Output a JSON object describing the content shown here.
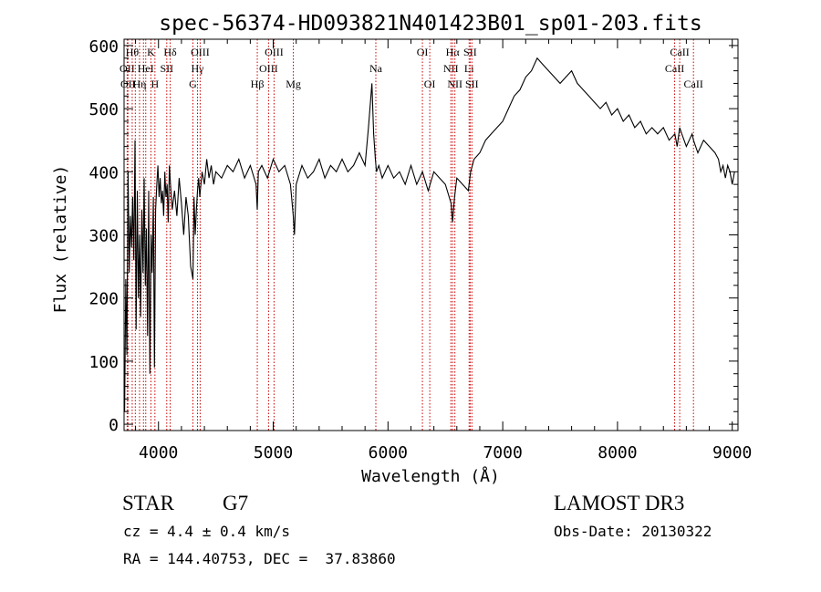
{
  "chart_data": {
    "type": "line",
    "title": "spec-56374-HD093821N401423B01_sp01-203.fits",
    "xlabel": "Wavelength (Å)",
    "ylabel": "Flux (relative)",
    "xlim": [
      3700,
      9050
    ],
    "ylim": [
      -10,
      610
    ],
    "xticks": [
      4000,
      5000,
      6000,
      7000,
      8000,
      9000
    ],
    "yticks": [
      0,
      100,
      200,
      300,
      400,
      500,
      600
    ],
    "grid": false,
    "line_color": "#000000",
    "marker_color": "#cc0000",
    "series": [
      {
        "x": [
          3705,
          3715,
          3725,
          3735,
          3745,
          3755,
          3765,
          3775,
          3785,
          3795,
          3805,
          3815,
          3825,
          3835,
          3845,
          3855,
          3865,
          3875,
          3885,
          3895,
          3905,
          3915,
          3925,
          3935,
          3945,
          3955,
          3965,
          3975,
          3985,
          3995,
          4005,
          4015,
          4025,
          4035,
          4045,
          4055,
          4065,
          4075,
          4085,
          4095,
          4105,
          4120,
          4140,
          4160,
          4180,
          4200,
          4220,
          4240,
          4260,
          4280,
          4300,
          4310,
          4320,
          4330,
          4340,
          4350,
          4360,
          4380,
          4400,
          4420,
          4440,
          4460,
          4480,
          4500,
          4550,
          4600,
          4650,
          4700,
          4750,
          4800,
          4850,
          4861,
          4870,
          4900,
          4950,
          5000,
          5050,
          5100,
          5150,
          5175,
          5185,
          5200,
          5250,
          5300,
          5350,
          5400,
          5450,
          5500,
          5550,
          5600,
          5650,
          5700,
          5750,
          5800,
          5830,
          5860,
          5875,
          5890,
          5900,
          5920,
          5950,
          6000,
          6050,
          6100,
          6150,
          6200,
          6250,
          6300,
          6350,
          6400,
          6450,
          6500,
          6550,
          6563,
          6580,
          6600,
          6650,
          6700,
          6720,
          6750,
          6800,
          6850,
          6900,
          6950,
          7000,
          7050,
          7100,
          7150,
          7200,
          7250,
          7300,
          7350,
          7400,
          7450,
          7500,
          7550,
          7600,
          7650,
          7700,
          7750,
          7800,
          7850,
          7900,
          7950,
          8000,
          8050,
          8100,
          8150,
          8200,
          8250,
          8300,
          8350,
          8400,
          8450,
          8500,
          8520,
          8542,
          8560,
          8600,
          8650,
          8662,
          8700,
          8750,
          8800,
          8850,
          8880,
          8900,
          8920,
          8940,
          8960,
          8980,
          9000,
          9020
        ],
        "y": [
          20,
          230,
          110,
          400,
          240,
          330,
          280,
          360,
          260,
          450,
          150,
          370,
          200,
          300,
          170,
          340,
          240,
          390,
          220,
          310,
          140,
          370,
          80,
          300,
          240,
          360,
          90,
          340,
          380,
          410,
          360,
          390,
          350,
          370,
          330,
          400,
          360,
          380,
          320,
          410,
          380,
          340,
          370,
          330,
          390,
          350,
          300,
          360,
          330,
          250,
          230,
          360,
          300,
          340,
          370,
          390,
          360,
          400,
          380,
          420,
          390,
          410,
          380,
          400,
          390,
          410,
          400,
          420,
          390,
          410,
          380,
          340,
          400,
          410,
          390,
          420,
          400,
          410,
          380,
          330,
          300,
          380,
          410,
          390,
          400,
          420,
          390,
          410,
          400,
          420,
          400,
          410,
          430,
          410,
          470,
          540,
          460,
          420,
          400,
          410,
          390,
          410,
          390,
          400,
          380,
          410,
          380,
          400,
          370,
          400,
          390,
          380,
          350,
          320,
          360,
          390,
          380,
          370,
          400,
          420,
          430,
          450,
          460,
          470,
          480,
          500,
          520,
          530,
          550,
          560,
          580,
          570,
          560,
          550,
          540,
          550,
          560,
          540,
          530,
          520,
          510,
          500,
          510,
          490,
          500,
          480,
          490,
          470,
          480,
          460,
          470,
          460,
          470,
          450,
          460,
          440,
          470,
          460,
          440,
          460,
          450,
          430,
          450,
          440,
          430,
          420,
          400,
          410,
          390,
          410,
          400,
          380,
          400
        ]
      }
    ],
    "line_markers": [
      {
        "x": 3727,
        "label": "OII",
        "row": 2
      },
      {
        "x": 3734,
        "label": "OII",
        "row": 3
      },
      {
        "x": 3771,
        "label": "Hθ",
        "row": 1
      },
      {
        "x": 3798,
        "label": "",
        "row": 0
      },
      {
        "x": 3835,
        "label": "Hη",
        "row": 3
      },
      {
        "x": 3869,
        "label": "",
        "row": 0
      },
      {
        "x": 3889,
        "label": "HeI",
        "row": 2
      },
      {
        "x": 3934,
        "label": "K",
        "row": 1
      },
      {
        "x": 3969,
        "label": "H",
        "row": 3
      },
      {
        "x": 4072,
        "label": "SII",
        "row": 2
      },
      {
        "x": 4102,
        "label": "Hδ",
        "row": 1
      },
      {
        "x": 4300,
        "label": "G",
        "row": 3
      },
      {
        "x": 4340,
        "label": "Hγ",
        "row": 2
      },
      {
        "x": 4363,
        "label": "OIII",
        "row": 1
      },
      {
        "x": 4861,
        "label": "Hβ",
        "row": 3
      },
      {
        "x": 4959,
        "label": "OIII",
        "row": 2
      },
      {
        "x": 5007,
        "label": "OIII",
        "row": 1
      },
      {
        "x": 5175,
        "label": "Mg",
        "row": 3
      },
      {
        "x": 5894,
        "label": "Na",
        "row": 2
      },
      {
        "x": 6300,
        "label": "OI",
        "row": 1
      },
      {
        "x": 6364,
        "label": "OI",
        "row": 3
      },
      {
        "x": 6548,
        "label": "NII",
        "row": 2
      },
      {
        "x": 6563,
        "label": "Hα",
        "row": 1
      },
      {
        "x": 6583,
        "label": "NII",
        "row": 3
      },
      {
        "x": 6707,
        "label": "Li",
        "row": 2
      },
      {
        "x": 6716,
        "label": "SII",
        "row": 1
      },
      {
        "x": 6731,
        "label": "SII",
        "row": 3
      },
      {
        "x": 8498,
        "label": "CaII",
        "row": 2
      },
      {
        "x": 8542,
        "label": "CaII",
        "row": 1
      },
      {
        "x": 8662,
        "label": "CaII",
        "row": 3
      }
    ]
  },
  "info": {
    "object_class": "STAR",
    "subclass": "G7",
    "velocity": "cz = 4.4 ± 0.4 km/s",
    "coords": "RA = 144.40753, DEC =  37.83860",
    "survey": "LAMOST DR3",
    "obs_date": "Obs-Date: 20130322"
  }
}
